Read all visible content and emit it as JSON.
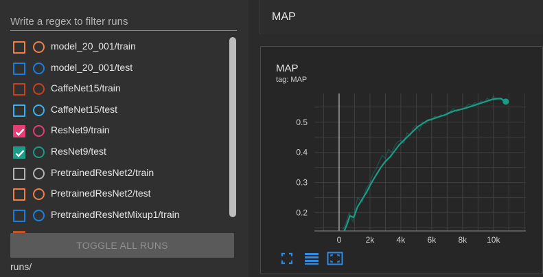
{
  "sidebar": {
    "search_placeholder": "Write a regex to filter runs",
    "runs": [
      {
        "label": "model_20_001/train",
        "color": "#f07f48",
        "checked": false
      },
      {
        "label": "model_20_001/test",
        "color": "#1b7fe0",
        "checked": false
      },
      {
        "label": "CaffeNet15/train",
        "color": "#c8421c",
        "checked": false
      },
      {
        "label": "CaffeNet15/test",
        "color": "#37b3f0",
        "checked": false
      },
      {
        "label": "ResNet9/train",
        "color": "#e73c74",
        "checked": true
      },
      {
        "label": "ResNet9/test",
        "color": "#1a9c86",
        "checked": true
      },
      {
        "label": "PretrainedResNet2/train",
        "color": "#b4b4b4",
        "checked": false
      },
      {
        "label": "PretrainedResNet2/test",
        "color": "#f07f48",
        "checked": false
      },
      {
        "label": "PretrainedResNetMixup1/train",
        "color": "#1b7fe0",
        "checked": false
      }
    ],
    "toggle_label": "TOGGLE ALL RUNS",
    "logdir": "runs/"
  },
  "main": {
    "group_title": "MAP",
    "card": {
      "title": "MAP",
      "tag": "tag: MAP"
    },
    "toolbar_icons": [
      "fit-to-screen-icon",
      "toggle-log-scale-icon",
      "fit-domain-icon"
    ]
  },
  "chart_data": {
    "type": "line",
    "xlim": [
      -1600,
      12100
    ],
    "ylim": [
      0.14,
      0.595
    ],
    "xticks": [
      0,
      2000,
      4000,
      6000,
      8000,
      10000
    ],
    "xtick_labels": [
      "0",
      "2k",
      "4k",
      "6k",
      "8k",
      "10k"
    ],
    "yticks": [
      0.2,
      0.3,
      0.4,
      0.5
    ],
    "ytick_labels": [
      "0.2",
      "0.3",
      "0.4",
      "0.5"
    ],
    "grid": true,
    "series": [
      {
        "color": "#1a9c86",
        "raw": [
          [
            250,
            0.145
          ],
          [
            400,
            0.16
          ],
          [
            650,
            0.2
          ],
          [
            900,
            0.17
          ],
          [
            1050,
            0.215
          ],
          [
            1200,
            0.25
          ],
          [
            1500,
            0.235
          ],
          [
            1750,
            0.28
          ],
          [
            2000,
            0.3
          ],
          [
            2200,
            0.33
          ],
          [
            2400,
            0.345
          ],
          [
            2600,
            0.37
          ],
          [
            2800,
            0.39
          ],
          [
            3000,
            0.38
          ],
          [
            3200,
            0.41
          ],
          [
            3400,
            0.4
          ],
          [
            3600,
            0.42
          ],
          [
            3800,
            0.435
          ],
          [
            4000,
            0.44
          ],
          [
            4200,
            0.43
          ],
          [
            4400,
            0.465
          ],
          [
            4600,
            0.455
          ],
          [
            4800,
            0.48
          ],
          [
            5000,
            0.49
          ],
          [
            5200,
            0.47
          ],
          [
            5400,
            0.5
          ],
          [
            5600,
            0.495
          ],
          [
            5800,
            0.51
          ],
          [
            6000,
            0.505
          ],
          [
            6200,
            0.52
          ],
          [
            6400,
            0.515
          ],
          [
            6600,
            0.525
          ],
          [
            6800,
            0.52
          ],
          [
            7000,
            0.53
          ],
          [
            7200,
            0.535
          ],
          [
            7400,
            0.545
          ],
          [
            7600,
            0.535
          ],
          [
            7800,
            0.54
          ],
          [
            8000,
            0.545
          ],
          [
            8200,
            0.55
          ],
          [
            8400,
            0.56
          ],
          [
            8600,
            0.555
          ],
          [
            8800,
            0.565
          ],
          [
            9000,
            0.56
          ],
          [
            9200,
            0.57
          ],
          [
            9400,
            0.565
          ],
          [
            9600,
            0.58
          ],
          [
            9800,
            0.57
          ],
          [
            10000,
            0.585
          ],
          [
            10200,
            0.575
          ],
          [
            10400,
            0.58
          ],
          [
            10600,
            0.57
          ],
          [
            10800,
            0.565
          ]
        ],
        "smoothed": [
          [
            250,
            0.13
          ],
          [
            500,
            0.16
          ],
          [
            700,
            0.19
          ],
          [
            950,
            0.185
          ],
          [
            1200,
            0.22
          ],
          [
            1500,
            0.245
          ],
          [
            1800,
            0.27
          ],
          [
            2100,
            0.3
          ],
          [
            2400,
            0.325
          ],
          [
            2700,
            0.35
          ],
          [
            3000,
            0.37
          ],
          [
            3300,
            0.385
          ],
          [
            3600,
            0.405
          ],
          [
            3900,
            0.425
          ],
          [
            4200,
            0.44
          ],
          [
            4500,
            0.455
          ],
          [
            4800,
            0.47
          ],
          [
            5100,
            0.485
          ],
          [
            5400,
            0.495
          ],
          [
            5700,
            0.505
          ],
          [
            6000,
            0.51
          ],
          [
            6300,
            0.515
          ],
          [
            6600,
            0.52
          ],
          [
            6900,
            0.525
          ],
          [
            7200,
            0.532
          ],
          [
            7500,
            0.538
          ],
          [
            7800,
            0.541
          ],
          [
            8100,
            0.545
          ],
          [
            8400,
            0.55
          ],
          [
            8700,
            0.555
          ],
          [
            9000,
            0.56
          ],
          [
            9300,
            0.565
          ],
          [
            9600,
            0.57
          ],
          [
            9900,
            0.575
          ],
          [
            10200,
            0.578
          ],
          [
            10500,
            0.578
          ],
          [
            10800,
            0.568
          ]
        ],
        "last_point": [
          10800,
          0.568
        ]
      }
    ]
  }
}
